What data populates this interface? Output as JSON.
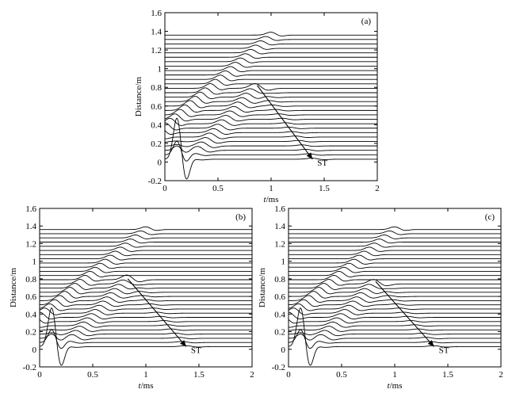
{
  "chart_data": [
    {
      "id": "a",
      "type": "line",
      "panel_label": "(a)",
      "xlabel_italic": "t",
      "xlabel_rest": "/ms",
      "ylabel": "Distance/m",
      "xlim": [
        0,
        2
      ],
      "ylim": [
        -0.2,
        1.6
      ],
      "xticks": [
        "0",
        "0.5",
        "1",
        "1.5",
        "2"
      ],
      "yticks": [
        "-0.2",
        "0",
        "0.2",
        "0.4",
        "0.6",
        "0.8",
        "1",
        "1.2",
        "1.4",
        "1.6"
      ],
      "annotation": "ST",
      "traces": {
        "count": 29,
        "offset_first_m": 0.03,
        "offset_last_m": 1.36,
        "spacing_m": 0.0475
      },
      "waves": {
        "incident_peak": {
          "t_ms": 0.12,
          "distance_m": 0.48
        },
        "fast_wave_end": {
          "t_ms": 1.02,
          "distance_m": 1.38
        },
        "slow_wave_peak": {
          "t_ms": 0.87,
          "distance_m": 0.82
        },
        "reflected_arrow_end": {
          "t_ms": 1.39,
          "distance_m": 0.03
        }
      }
    },
    {
      "id": "b",
      "type": "line",
      "panel_label": "(b)",
      "xlabel_italic": "t",
      "xlabel_rest": "/ms",
      "ylabel": "Distance/m",
      "xlim": [
        0,
        2
      ],
      "ylim": [
        -0.2,
        1.6
      ],
      "xticks": [
        "0",
        "0.5",
        "1",
        "1.5",
        "2"
      ],
      "yticks": [
        "-0.2",
        "0",
        "0.2",
        "0.4",
        "0.6",
        "0.8",
        "1",
        "1.2",
        "1.4",
        "1.6"
      ],
      "annotation": "ST",
      "traces": {
        "count": 29,
        "offset_first_m": 0.03,
        "offset_last_m": 1.36,
        "spacing_m": 0.0475
      },
      "waves": {
        "incident_peak": {
          "t_ms": 0.12,
          "distance_m": 0.48
        },
        "fast_wave_end": {
          "t_ms": 1.02,
          "distance_m": 1.38
        },
        "slow_wave_peak": {
          "t_ms": 0.83,
          "distance_m": 0.8
        },
        "reflected_arrow_end": {
          "t_ms": 1.38,
          "distance_m": 0.03
        }
      }
    },
    {
      "id": "c",
      "type": "line",
      "panel_label": "(c)",
      "xlabel_italic": "t",
      "xlabel_rest": "/ms",
      "ylabel": "Distance/m",
      "xlim": [
        0,
        2
      ],
      "ylim": [
        -0.2,
        1.6
      ],
      "xticks": [
        "0",
        "0.5",
        "1",
        "1.5",
        "2"
      ],
      "yticks": [
        "-0.2",
        "0",
        "0.2",
        "0.4",
        "0.6",
        "0.8",
        "1",
        "1.2",
        "1.4",
        "1.6"
      ],
      "annotation": "ST",
      "traces": {
        "count": 29,
        "offset_first_m": 0.03,
        "offset_last_m": 1.36,
        "spacing_m": 0.0475
      },
      "waves": {
        "incident_peak": {
          "t_ms": 0.12,
          "distance_m": 0.48
        },
        "fast_wave_end": {
          "t_ms": 1.02,
          "distance_m": 1.38
        },
        "slow_wave_peak": {
          "t_ms": 0.82,
          "distance_m": 0.77
        },
        "reflected_arrow_end": {
          "t_ms": 1.37,
          "distance_m": 0.03
        }
      }
    }
  ]
}
